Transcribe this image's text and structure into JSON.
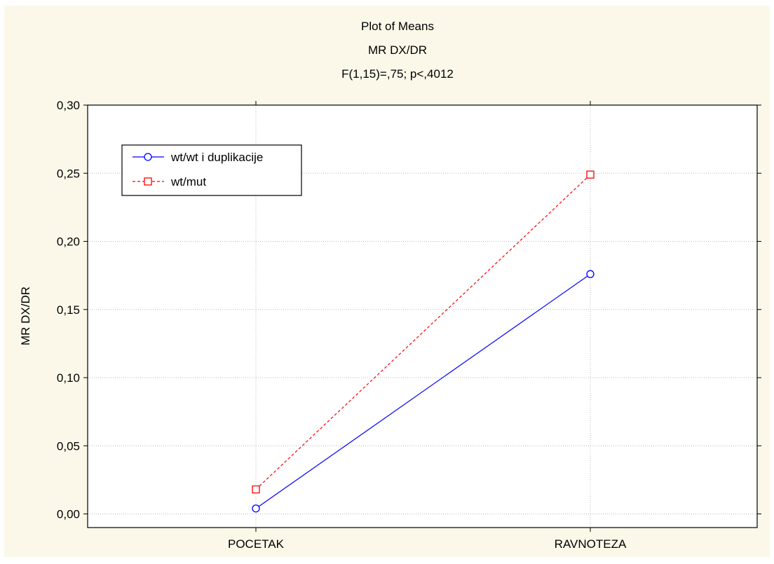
{
  "chart_data": {
    "type": "line",
    "title": "Plot of Means",
    "subtitle": "MR DX/DR",
    "stats": "F(1,15)=,75; p<,4012",
    "xlabel": "",
    "ylabel": "MR DX/DR",
    "categories": [
      "POCETAK",
      "RAVNOTEZA"
    ],
    "ylim": [
      -0.01,
      0.3
    ],
    "yticks": [
      0.0,
      0.05,
      0.1,
      0.15,
      0.2,
      0.25,
      0.3
    ],
    "ytick_labels": [
      "0,00",
      "0,05",
      "0,10",
      "0,15",
      "0,20",
      "0,25",
      "0,30"
    ],
    "grid": true,
    "legend_position": "top-left",
    "series": [
      {
        "name": "wt/wt i duplikacije",
        "values": [
          0.004,
          0.176
        ],
        "color": "#0000ff",
        "marker": "circle",
        "line_style": "solid"
      },
      {
        "name": "wt/mut",
        "values": [
          0.018,
          0.249
        ],
        "color": "#ff0000",
        "marker": "square",
        "line_style": "dashed"
      }
    ],
    "colors": {
      "background": "#fbf8e9",
      "plot_area": "#ffffff",
      "grid": "#b8b8b8",
      "axis": "#000000",
      "text": "#000000"
    }
  }
}
